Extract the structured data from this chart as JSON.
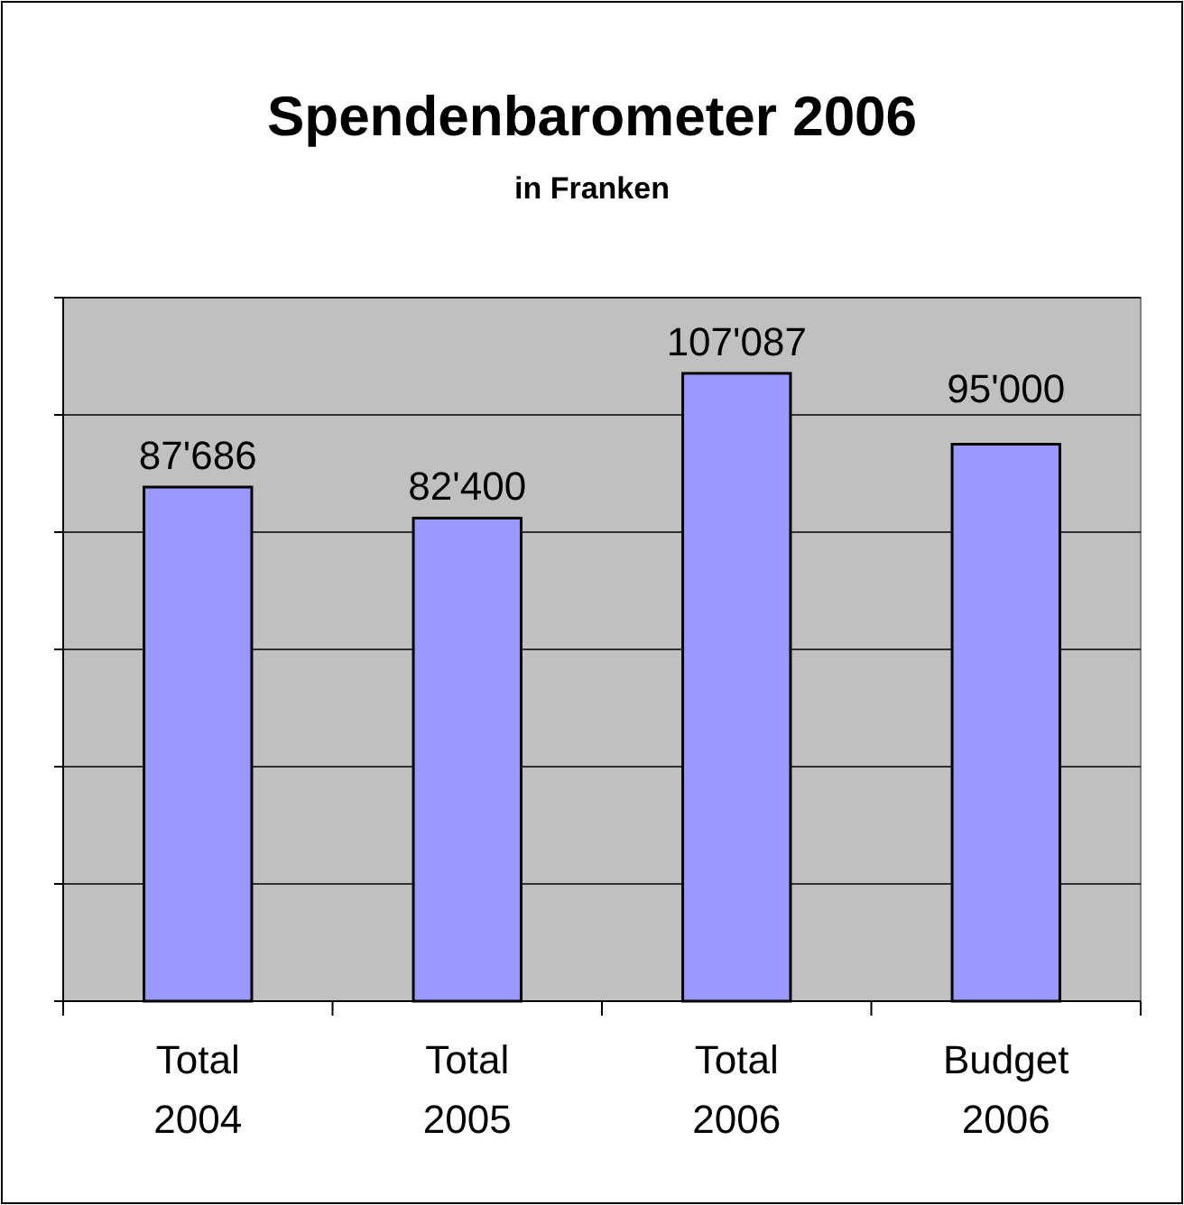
{
  "chart_data": {
    "type": "bar",
    "title": "Spendenbarometer 2006",
    "subtitle": "in Franken",
    "categories": [
      "Total 2004",
      "Total 2005",
      "Total 2006",
      "Budget 2006"
    ],
    "values": [
      87686,
      82400,
      107087,
      95000
    ],
    "value_labels": [
      "87'686",
      "82'400",
      "107'087",
      "95'000"
    ],
    "color": "#9999ff",
    "ylim": [
      0,
      120000
    ],
    "yticks": [
      {
        "value": 0,
        "label": null
      },
      {
        "value": 20000,
        "label": null
      },
      {
        "value": 40000,
        "label": null
      },
      {
        "value": 60000,
        "label": null
      },
      {
        "value": 80000,
        "label": null
      },
      {
        "value": 100000,
        "label": null
      },
      {
        "value": 120000,
        "label": null
      }
    ],
    "grid": "y",
    "tick_labels": "x"
  }
}
